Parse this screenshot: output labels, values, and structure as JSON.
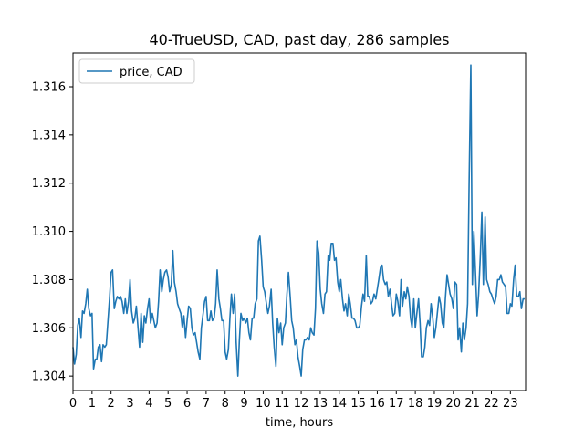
{
  "chart_data": {
    "type": "line",
    "title": "40-TrueUSD, CAD, past day, 286 samples",
    "xlabel": "time, hours",
    "ylabel": "",
    "xlim": [
      0,
      23.8
    ],
    "ylim": [
      1.3034,
      1.3174
    ],
    "xticks": [
      0,
      1,
      2,
      3,
      4,
      5,
      6,
      7,
      8,
      9,
      10,
      11,
      12,
      13,
      14,
      15,
      16,
      17,
      18,
      19,
      20,
      21,
      22,
      23
    ],
    "yticks": [
      1.304,
      1.306,
      1.308,
      1.31,
      1.312,
      1.314,
      1.316
    ],
    "ytick_labels": [
      "1.304",
      "1.306",
      "1.308",
      "1.310",
      "1.312",
      "1.314",
      "1.316"
    ],
    "legend_position": "top-left",
    "line_color": "#1f77b4",
    "series": [
      {
        "name": "price, CAD",
        "x": [
          0,
          0.08,
          0.17,
          0.25,
          0.33,
          0.42,
          0.5,
          0.58,
          0.67,
          0.75,
          0.83,
          0.92,
          1,
          1.08,
          1.17,
          1.25,
          1.33,
          1.42,
          1.5,
          1.58,
          1.67,
          1.75,
          1.83,
          1.92,
          2,
          2.08,
          2.17,
          2.25,
          2.33,
          2.42,
          2.5,
          2.58,
          2.67,
          2.75,
          2.83,
          2.92,
          3,
          3.08,
          3.17,
          3.25,
          3.33,
          3.42,
          3.5,
          3.58,
          3.67,
          3.75,
          3.83,
          3.92,
          4,
          4.08,
          4.17,
          4.25,
          4.33,
          4.42,
          4.5,
          4.58,
          4.67,
          4.75,
          4.83,
          4.92,
          5,
          5.08,
          5.17,
          5.25,
          5.33,
          5.42,
          5.5,
          5.58,
          5.67,
          5.75,
          5.83,
          5.92,
          6,
          6.08,
          6.17,
          6.25,
          6.33,
          6.42,
          6.5,
          6.58,
          6.67,
          6.75,
          6.83,
          6.92,
          7,
          7.08,
          7.17,
          7.25,
          7.33,
          7.42,
          7.5,
          7.58,
          7.67,
          7.75,
          7.83,
          7.92,
          8,
          8.08,
          8.17,
          8.25,
          8.33,
          8.42,
          8.5,
          8.58,
          8.67,
          8.75,
          8.83,
          8.92,
          9,
          9.08,
          9.17,
          9.25,
          9.33,
          9.42,
          9.5,
          9.58,
          9.67,
          9.75,
          9.83,
          9.92,
          10,
          10.08,
          10.17,
          10.25,
          10.33,
          10.42,
          10.5,
          10.58,
          10.67,
          10.75,
          10.83,
          10.92,
          11,
          11.08,
          11.17,
          11.25,
          11.33,
          11.42,
          11.5,
          11.58,
          11.67,
          11.75,
          11.83,
          11.92,
          12,
          12.08,
          12.17,
          12.25,
          12.33,
          12.42,
          12.5,
          12.58,
          12.67,
          12.75,
          12.83,
          12.92,
          13,
          13.08,
          13.17,
          13.25,
          13.33,
          13.42,
          13.5,
          13.58,
          13.67,
          13.75,
          13.83,
          13.92,
          14,
          14.08,
          14.17,
          14.25,
          14.33,
          14.42,
          14.5,
          14.58,
          14.67,
          14.75,
          14.83,
          14.92,
          15,
          15.08,
          15.17,
          15.25,
          15.33,
          15.42,
          15.5,
          15.58,
          15.67,
          15.75,
          15.83,
          15.92,
          16,
          16.08,
          16.17,
          16.25,
          16.33,
          16.42,
          16.5,
          16.58,
          16.67,
          16.75,
          16.83,
          16.92,
          17,
          17.08,
          17.17,
          17.25,
          17.33,
          17.42,
          17.5,
          17.58,
          17.67,
          17.75,
          17.83,
          17.92,
          18,
          18.08,
          18.17,
          18.25,
          18.33,
          18.42,
          18.5,
          18.58,
          18.67,
          18.75,
          18.83,
          18.92,
          19,
          19.08,
          19.17,
          19.25,
          19.33,
          19.42,
          19.5,
          19.58,
          19.67,
          19.75,
          19.83,
          19.92,
          20,
          20.08,
          20.17,
          20.25,
          20.33,
          20.42,
          20.5,
          20.58,
          20.67,
          20.75,
          20.83,
          20.92,
          21,
          21.08,
          21.17,
          21.25,
          21.33,
          21.42,
          21.5,
          21.58,
          21.67,
          21.75,
          21.83,
          21.92,
          22,
          22.08,
          22.17,
          22.25,
          22.33,
          22.42,
          22.5,
          22.58,
          22.67,
          22.75,
          22.83,
          22.92,
          23,
          23.08,
          23.17,
          23.25,
          23.33,
          23.42,
          23.5,
          23.58,
          23.67,
          23.75
        ],
        "values": [
          1.3052,
          1.3045,
          1.3049,
          1.3061,
          1.3064,
          1.3056,
          1.3067,
          1.3066,
          1.307,
          1.3076,
          1.3068,
          1.3065,
          1.3066,
          1.3043,
          1.3047,
          1.3047,
          1.3052,
          1.3053,
          1.3046,
          1.3053,
          1.3052,
          1.3053,
          1.3062,
          1.3072,
          1.3083,
          1.3084,
          1.3068,
          1.3071,
          1.3073,
          1.3072,
          1.3073,
          1.3071,
          1.3066,
          1.3072,
          1.3066,
          1.3071,
          1.308,
          1.3067,
          1.3062,
          1.3064,
          1.3069,
          1.306,
          1.3052,
          1.3066,
          1.3054,
          1.3065,
          1.3062,
          1.3068,
          1.3072,
          1.3062,
          1.3066,
          1.3063,
          1.306,
          1.3062,
          1.3071,
          1.3084,
          1.3075,
          1.308,
          1.3083,
          1.3084,
          1.3081,
          1.3075,
          1.3078,
          1.3092,
          1.3079,
          1.3075,
          1.307,
          1.3068,
          1.3066,
          1.306,
          1.3065,
          1.3056,
          1.3063,
          1.3069,
          1.3068,
          1.306,
          1.3057,
          1.3058,
          1.3054,
          1.305,
          1.3047,
          1.306,
          1.3065,
          1.3071,
          1.3073,
          1.3063,
          1.3063,
          1.3067,
          1.3063,
          1.3064,
          1.307,
          1.3084,
          1.3072,
          1.3068,
          1.3063,
          1.3063,
          1.305,
          1.3047,
          1.3051,
          1.3064,
          1.3074,
          1.3066,
          1.3074,
          1.3054,
          1.304,
          1.3055,
          1.3066,
          1.3063,
          1.3064,
          1.3062,
          1.3064,
          1.3058,
          1.3055,
          1.3064,
          1.3064,
          1.307,
          1.3072,
          1.3096,
          1.3098,
          1.3088,
          1.3077,
          1.3075,
          1.307,
          1.3066,
          1.3069,
          1.3076,
          1.3062,
          1.3052,
          1.3044,
          1.3064,
          1.3058,
          1.3062,
          1.3053,
          1.306,
          1.3062,
          1.3074,
          1.3083,
          1.3073,
          1.3063,
          1.306,
          1.3053,
          1.3055,
          1.3048,
          1.3044,
          1.304,
          1.3051,
          1.3055,
          1.3055,
          1.3056,
          1.3055,
          1.306,
          1.3058,
          1.3057,
          1.3068,
          1.3096,
          1.3091,
          1.3076,
          1.307,
          1.3066,
          1.3074,
          1.3075,
          1.309,
          1.3088,
          1.3095,
          1.3095,
          1.3088,
          1.3089,
          1.3079,
          1.3075,
          1.308,
          1.3072,
          1.3067,
          1.307,
          1.3065,
          1.3074,
          1.307,
          1.3064,
          1.3064,
          1.3063,
          1.306,
          1.306,
          1.3061,
          1.3069,
          1.3074,
          1.3071,
          1.309,
          1.3073,
          1.3073,
          1.307,
          1.3071,
          1.3074,
          1.3072,
          1.3076,
          1.308,
          1.3085,
          1.3086,
          1.308,
          1.3078,
          1.3079,
          1.3073,
          1.3076,
          1.307,
          1.3065,
          1.3066,
          1.3074,
          1.3071,
          1.3065,
          1.308,
          1.3069,
          1.3075,
          1.3072,
          1.3077,
          1.3073,
          1.3064,
          1.306,
          1.3072,
          1.306,
          1.3066,
          1.3072,
          1.3062,
          1.3048,
          1.3048,
          1.3052,
          1.306,
          1.3063,
          1.3061,
          1.307,
          1.3064,
          1.3056,
          1.306,
          1.3067,
          1.3073,
          1.307,
          1.3062,
          1.306,
          1.3072,
          1.3082,
          1.3078,
          1.3074,
          1.3072,
          1.3068,
          1.3079,
          1.3078,
          1.3055,
          1.306,
          1.305,
          1.3062,
          1.3055,
          1.306,
          1.307,
          1.312,
          1.3169,
          1.3078,
          1.31,
          1.3082,
          1.3065,
          1.3074,
          1.309,
          1.3108,
          1.3078,
          1.3106,
          1.308,
          1.3078,
          1.3075,
          1.3074,
          1.3072,
          1.307,
          1.3073,
          1.308,
          1.308,
          1.3082,
          1.3079,
          1.3078,
          1.3077,
          1.3066,
          1.3066,
          1.307,
          1.3069,
          1.308,
          1.3086,
          1.3073,
          1.3073,
          1.3075,
          1.3068,
          1.3072,
          1.3072
        ]
      }
    ]
  }
}
